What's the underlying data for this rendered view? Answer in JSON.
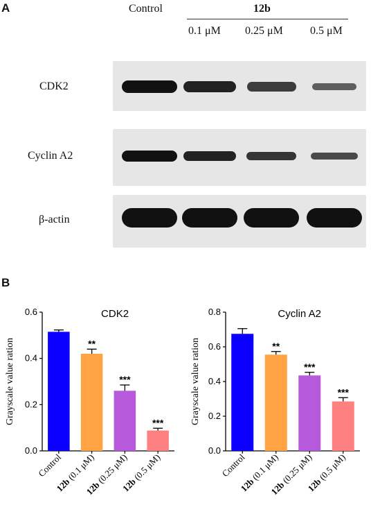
{
  "panel_a": {
    "label": "A",
    "control_header": "Control",
    "group_header": "12b",
    "concentrations": [
      "0.1 μM",
      "0.25 μM",
      "0.5 μM"
    ],
    "blots": [
      {
        "label": "CDK2",
        "band_intensity": [
          1.0,
          0.82,
          0.55,
          0.2
        ]
      },
      {
        "label": "Cyclin A2",
        "band_intensity": [
          1.0,
          0.82,
          0.62,
          0.42
        ]
      },
      {
        "label": "β-actin",
        "band_intensity": [
          1.0,
          1.0,
          1.0,
          1.0
        ]
      }
    ]
  },
  "panel_b": {
    "label": "B"
  },
  "colors": {
    "control": "#0b00ff",
    "c01": "#ffa343",
    "c025": "#b65adb",
    "c05": "#ff8080"
  },
  "chart_data": [
    {
      "type": "bar",
      "title": "CDK2",
      "ylabel": "Grayscale value ration",
      "ylim": [
        0,
        0.6
      ],
      "yticks": [
        "0.0",
        "0.2",
        "0.4",
        "0.6"
      ],
      "categories": [
        {
          "bold": "",
          "text": "Control"
        },
        {
          "bold": "12b",
          "text": " (0.1 μM)"
        },
        {
          "bold": "12b",
          "text": " (0.25 μM)"
        },
        {
          "bold": "12b",
          "text": " (0.5 μM)"
        }
      ],
      "values": [
        0.515,
        0.42,
        0.26,
        0.088
      ],
      "errors": [
        0.008,
        0.02,
        0.025,
        0.01
      ],
      "significance": [
        "",
        "**",
        "***",
        "***"
      ]
    },
    {
      "type": "bar",
      "title": "Cyclin A2",
      "ylabel": "Grayscale value ration",
      "ylim": [
        0,
        0.8
      ],
      "yticks": [
        "0.0",
        "0.2",
        "0.4",
        "0.6",
        "0.8"
      ],
      "categories": [
        {
          "bold": "",
          "text": "Control"
        },
        {
          "bold": "12b",
          "text": " (0.1 μM)"
        },
        {
          "bold": "12b",
          "text": " (0.25 μM)"
        },
        {
          "bold": "12b",
          "text": " (0.5 μM)"
        }
      ],
      "values": [
        0.675,
        0.555,
        0.435,
        0.285
      ],
      "errors": [
        0.03,
        0.018,
        0.018,
        0.022
      ],
      "significance": [
        "",
        "**",
        "***",
        "***"
      ]
    }
  ]
}
